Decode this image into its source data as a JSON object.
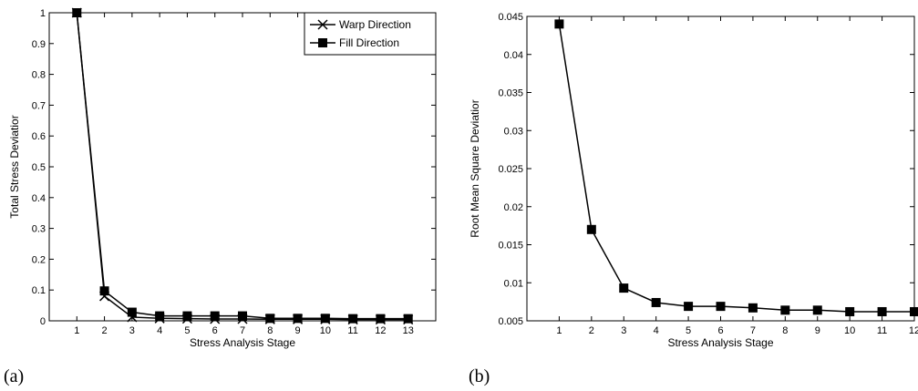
{
  "chart_data": [
    {
      "type": "line",
      "panel_label": "(a)",
      "xlabel": "Stress Analysis Stage",
      "ylabel": "Total Stress Deviatior",
      "x": [
        1,
        2,
        3,
        4,
        5,
        6,
        7,
        8,
        9,
        10,
        11,
        12,
        13
      ],
      "xlim": [
        0,
        14
      ],
      "ylim": [
        0,
        1
      ],
      "xticks": [
        "1",
        "2",
        "3",
        "4",
        "5",
        "6",
        "7",
        "8",
        "9",
        "10",
        "11",
        "12",
        "13"
      ],
      "yticks": [
        "0",
        "0.1",
        "0.2",
        "0.3",
        "0.4",
        "0.5",
        "0.6",
        "0.7",
        "0.8",
        "0.9",
        "1"
      ],
      "grid": false,
      "legend_position": "top-right",
      "series": [
        {
          "name": "Warp Direction",
          "marker": "x",
          "values": [
            1.0,
            0.08,
            0.012,
            0.008,
            0.007,
            0.006,
            0.006,
            0.005,
            0.005,
            0.005,
            0.004,
            0.004,
            0.004
          ]
        },
        {
          "name": "Fill Direction",
          "marker": "square",
          "values": [
            1.0,
            0.097,
            0.028,
            0.016,
            0.016,
            0.016,
            0.016,
            0.008,
            0.008,
            0.008,
            0.007,
            0.007,
            0.007
          ]
        }
      ]
    },
    {
      "type": "line",
      "panel_label": "(b)",
      "xlabel": "Stress Analysis Stage",
      "ylabel": "Root Mean Square Deviatior",
      "x": [
        1,
        2,
        3,
        4,
        5,
        6,
        7,
        8,
        9,
        10,
        11,
        12
      ],
      "xlim": [
        0,
        12
      ],
      "ylim": [
        0.005,
        0.045
      ],
      "xticks": [
        "1",
        "2",
        "3",
        "4",
        "5",
        "6",
        "7",
        "8",
        "9",
        "10",
        "11",
        "12"
      ],
      "yticks": [
        "0.005",
        "0.01",
        "0.015",
        "0.02",
        "0.025",
        "0.03",
        "0.035",
        "0.04",
        "0.045"
      ],
      "grid": false,
      "series": [
        {
          "marker": "square",
          "values": [
            0.044,
            0.017,
            0.0093,
            0.0074,
            0.0069,
            0.0069,
            0.0067,
            0.0064,
            0.0064,
            0.0062,
            0.0062,
            0.0062
          ]
        }
      ]
    }
  ]
}
